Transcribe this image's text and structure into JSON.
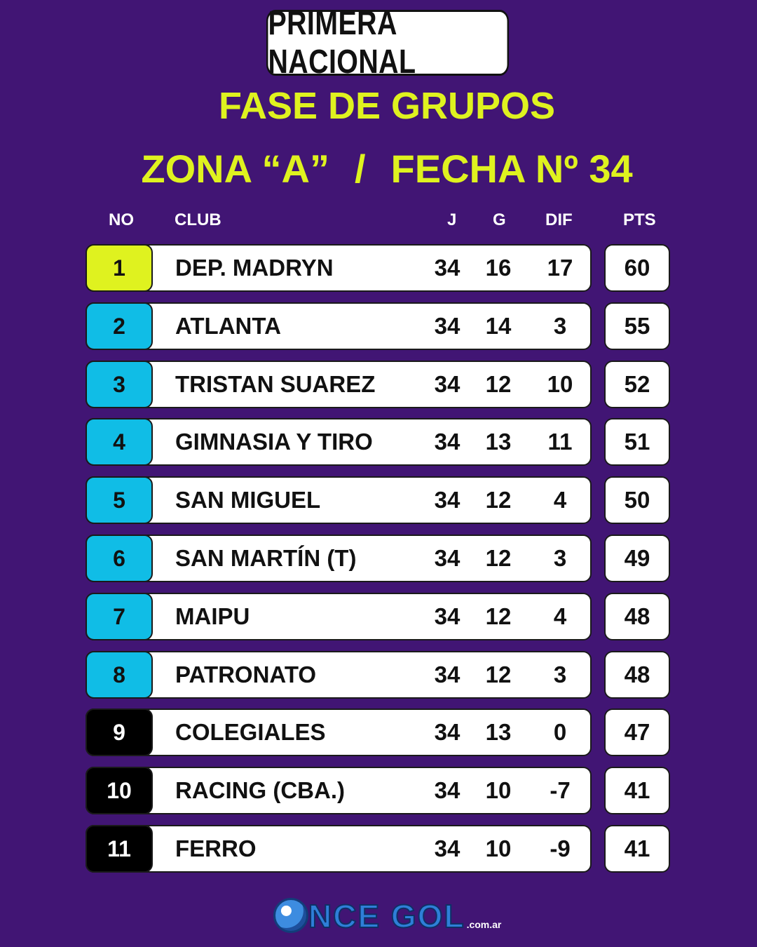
{
  "header": {
    "league": "PRIMERA NACIONAL",
    "phase": "FASE DE GRUPOS",
    "zone": "ZONA “A”",
    "separator": "/",
    "round": "FECHA Nº 34"
  },
  "columns": {
    "no": "NO",
    "club": "CLUB",
    "j": "J",
    "g": "G",
    "dif": "DIF",
    "pts": "PTS"
  },
  "colors": {
    "background": "#411574",
    "accent": "#dff21f",
    "leader": "#dff21f",
    "qualified": "#10bde6",
    "rest": "#000000"
  },
  "rows": [
    {
      "pos": "1",
      "club": "DEP. MADRYN",
      "j": "34",
      "g": "16",
      "dif": "17",
      "pts": "60",
      "status": "leader"
    },
    {
      "pos": "2",
      "club": "ATLANTA",
      "j": "34",
      "g": "14",
      "dif": "3",
      "pts": "55",
      "status": "qualified"
    },
    {
      "pos": "3",
      "club": "TRISTAN SUAREZ",
      "j": "34",
      "g": "12",
      "dif": "10",
      "pts": "52",
      "status": "qualified"
    },
    {
      "pos": "4",
      "club": "GIMNASIA Y TIRO",
      "j": "34",
      "g": "13",
      "dif": "11",
      "pts": "51",
      "status": "qualified"
    },
    {
      "pos": "5",
      "club": "SAN MIGUEL",
      "j": "34",
      "g": "12",
      "dif": "4",
      "pts": "50",
      "status": "qualified"
    },
    {
      "pos": "6",
      "club": "SAN MARTÍN (T)",
      "j": "34",
      "g": "12",
      "dif": "3",
      "pts": "49",
      "status": "qualified"
    },
    {
      "pos": "7",
      "club": "MAIPU",
      "j": "34",
      "g": "12",
      "dif": "4",
      "pts": "48",
      "status": "qualified"
    },
    {
      "pos": "8",
      "club": "PATRONATO",
      "j": "34",
      "g": "12",
      "dif": "3",
      "pts": "48",
      "status": "qualified"
    },
    {
      "pos": "9",
      "club": "COLEGIALES",
      "j": "34",
      "g": "13",
      "dif": "0",
      "pts": "47",
      "status": "rest"
    },
    {
      "pos": "10",
      "club": "RACING (CBA.)",
      "j": "34",
      "g": "10",
      "dif": "-7",
      "pts": "41",
      "status": "rest"
    },
    {
      "pos": "11",
      "club": "FERRO",
      "j": "34",
      "g": "10",
      "dif": "-9",
      "pts": "41",
      "status": "rest"
    }
  ],
  "logo": {
    "text": "NCE GOL",
    "domain": ".com.ar",
    "icon": "soccer-ball-icon"
  }
}
